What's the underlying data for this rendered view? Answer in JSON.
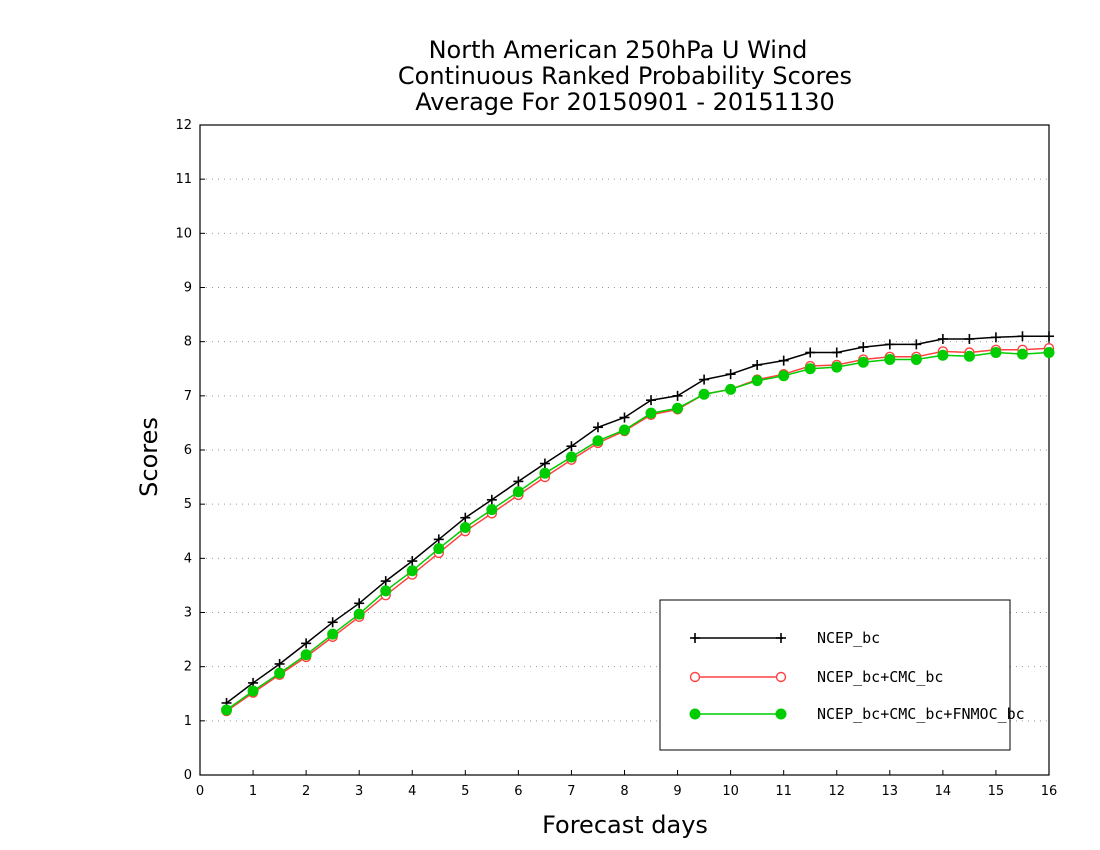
{
  "chart_data": {
    "type": "line",
    "title": [
      "North American 250hPa U Wind",
      "Continuous Ranked Probability Scores",
      "Average For 20150901 - 20151130"
    ],
    "xlabel": "Forecast days",
    "ylabel": "Scores",
    "xlim": [
      0,
      16
    ],
    "ylim": [
      0,
      12
    ],
    "xticks": [
      0,
      1,
      2,
      3,
      4,
      5,
      6,
      7,
      8,
      9,
      10,
      11,
      12,
      13,
      14,
      15,
      16
    ],
    "yticks": [
      0,
      1,
      2,
      3,
      4,
      5,
      6,
      7,
      8,
      9,
      10,
      11,
      12
    ],
    "grid": true,
    "legend_position": "bottom-right",
    "x": [
      0.5,
      1,
      1.5,
      2,
      2.5,
      3,
      3.5,
      4,
      4.5,
      5,
      5.5,
      6,
      6.5,
      7,
      7.5,
      8,
      8.5,
      9,
      9.5,
      10,
      10.5,
      11,
      11.5,
      12,
      12.5,
      13,
      13.5,
      14,
      14.5,
      15,
      15.5,
      16
    ],
    "series": [
      {
        "name": "NCEP_bc",
        "color": "#000000",
        "marker": "plus",
        "values": [
          1.33,
          1.7,
          2.05,
          2.43,
          2.82,
          3.17,
          3.58,
          3.95,
          4.35,
          4.75,
          5.08,
          5.42,
          5.75,
          6.07,
          6.42,
          6.6,
          6.92,
          7.0,
          7.3,
          7.4,
          7.57,
          7.65,
          7.8,
          7.8,
          7.9,
          7.95,
          7.95,
          8.05,
          8.05,
          8.08,
          8.1,
          8.1
        ]
      },
      {
        "name": "NCEP_bc+CMC_bc",
        "color": "#ff4040",
        "marker": "open-circle",
        "values": [
          1.18,
          1.52,
          1.85,
          2.18,
          2.55,
          2.92,
          3.32,
          3.7,
          4.1,
          4.5,
          4.83,
          5.17,
          5.5,
          5.82,
          6.13,
          6.35,
          6.65,
          6.75,
          7.03,
          7.12,
          7.3,
          7.4,
          7.55,
          7.57,
          7.67,
          7.72,
          7.72,
          7.82,
          7.8,
          7.85,
          7.85,
          7.88
        ]
      },
      {
        "name": "NCEP_bc+CMC_bc+FNMOC_bc",
        "color": "#00cc00",
        "marker": "filled-circle",
        "values": [
          1.2,
          1.55,
          1.88,
          2.22,
          2.6,
          2.97,
          3.4,
          3.77,
          4.18,
          4.57,
          4.9,
          5.23,
          5.57,
          5.87,
          6.17,
          6.37,
          6.68,
          6.77,
          7.03,
          7.12,
          7.28,
          7.37,
          7.5,
          7.53,
          7.62,
          7.67,
          7.67,
          7.75,
          7.73,
          7.8,
          7.77,
          7.8
        ]
      }
    ]
  }
}
